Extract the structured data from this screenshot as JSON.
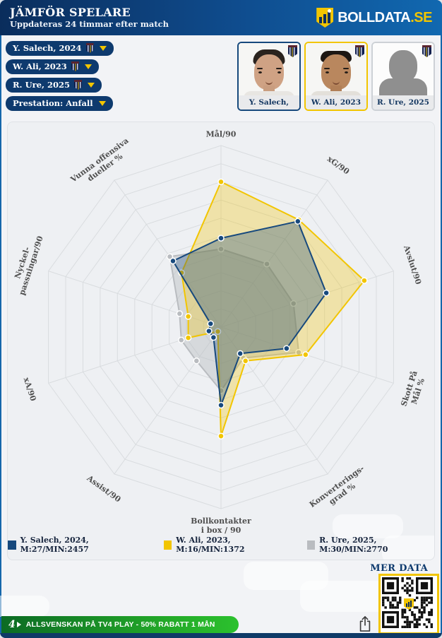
{
  "header": {
    "title": "JÄMFÖR SPELARE",
    "subtitle": "Uppdateras 24 timmar efter match",
    "logo_text": "BOLLDATA",
    "logo_tld": ".SE"
  },
  "filters": [
    {
      "label": "Y. Salech, 2024",
      "has_club_badge": true
    },
    {
      "label": "W. Ali, 2023",
      "has_club_badge": true
    },
    {
      "label": "R. Ure, 2025",
      "has_club_badge": true
    },
    {
      "label": "Prestation: Anfall",
      "has_club_badge": false
    }
  ],
  "players": [
    {
      "name": "Y. Salech, 2024",
      "selected_border_color": "#17497d",
      "photo": "player-photo"
    },
    {
      "name": "W. Ali, 2023",
      "selected_border_color": "#f2c500",
      "photo": "player-photo"
    },
    {
      "name": "R. Ure, 2025",
      "selected_border_color": "#cdd1d6",
      "photo": "silhouette-placeholder"
    }
  ],
  "chart_data": {
    "type": "radar",
    "rings": 10,
    "value_scale": "fraction of axis maximum (0-1), estimated from plot",
    "axes": [
      "Mål/90",
      "xG/90",
      "Avslut/90",
      "Skott På\nMål %",
      "Konverterings-\ngrad %",
      "Bollkontakter\ni box / 90",
      "Assist/90",
      "xA/90",
      "Nyckel-\npassningar/90",
      "Vunna offensiva\ndueller %"
    ],
    "grid_color": "#d9dcdf",
    "series": [
      {
        "name": "Y. Salech, 2024, M:27/MIN:2457",
        "matches": 27,
        "minutes": 2457,
        "color": "#17497d",
        "fill_opacity": 0.32,
        "values": [
          0.49,
          0.72,
          0.61,
          0.38,
          0.18,
          0.43,
          0.07,
          0.07,
          0.06,
          0.45
        ]
      },
      {
        "name": "W. Ali, 2023, M:16/MIN:1372",
        "matches": 16,
        "minutes": 1372,
        "color": "#f2c500",
        "fill_opacity": 0.3,
        "values": [
          0.8,
          0.73,
          0.83,
          0.49,
          0.23,
          0.6,
          0.03,
          0.19,
          0.19,
          0.37
        ]
      },
      {
        "name": "R. Ure, 2025, M:30/MIN:2770",
        "matches": 30,
        "minutes": 2770,
        "color": "#b9bcc0",
        "fill_opacity": 0.45,
        "values": [
          0.43,
          0.43,
          0.42,
          0.45,
          0.21,
          0.35,
          0.23,
          0.23,
          0.24,
          0.48
        ]
      }
    ]
  },
  "footer": {
    "more_data_label": "MER DATA",
    "qr_border_color": "#f2c500"
  },
  "banner": {
    "tv4_mark": "4",
    "text": "ALLSVENSKAN PÅ TV4 PLAY - 50% RABATT 1 MÅN"
  }
}
